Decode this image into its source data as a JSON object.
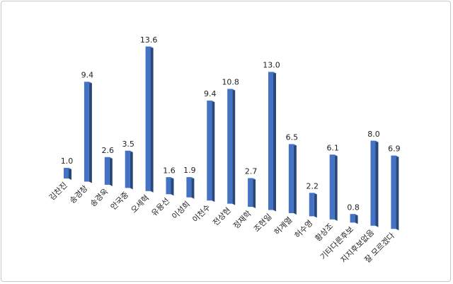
{
  "chart_data": {
    "type": "bar",
    "title": "",
    "xlabel": "",
    "ylabel": "",
    "ylim": [
      0,
      14
    ],
    "grid": false,
    "legend": "none",
    "bar_color": "#4472c4",
    "categories": [
      "김찬진",
      "송경창",
      "송경욱",
      "안국중",
      "오세혁",
      "유용선",
      "이성희",
      "이천수",
      "전상현",
      "정재학",
      "조현일",
      "허계열",
      "허수영",
      "황상조",
      "기타다른후보",
      "지지후보없음",
      "잘 모르겠다"
    ],
    "values": [
      1.0,
      9.4,
      2.6,
      3.5,
      13.6,
      1.6,
      1.9,
      9.4,
      10.8,
      2.7,
      13.0,
      6.5,
      2.2,
      6.1,
      0.8,
      8.0,
      6.9
    ],
    "value_labels": [
      "1.0",
      "9.4",
      "2.6",
      "3.5",
      "13.6",
      "1.6",
      "1.9",
      "9.4",
      "10.8",
      "2.7",
      "13.0",
      "6.5",
      "2.2",
      "6.1",
      "0.8",
      "8.0",
      "6.9"
    ]
  }
}
